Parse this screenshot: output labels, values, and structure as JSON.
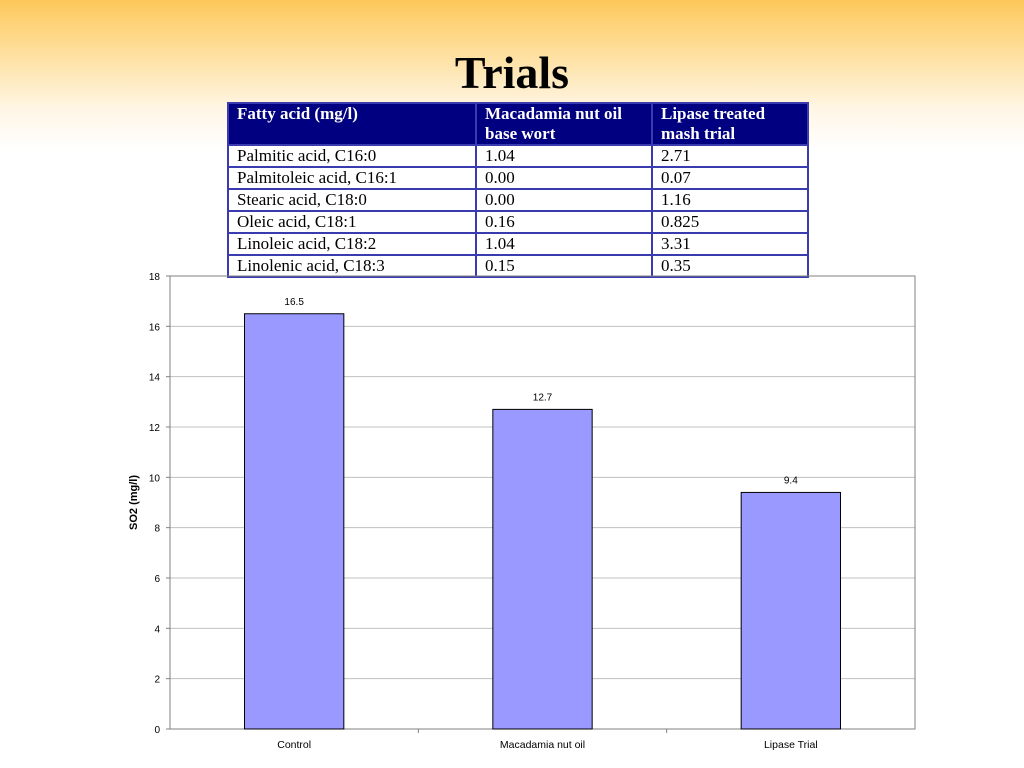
{
  "slide": {
    "title": "Trials"
  },
  "table": {
    "headers": [
      "Fatty acid (mg/l)",
      "Macadamia nut oil base wort",
      "Lipase treated mash trial"
    ],
    "rows": [
      [
        "Palmitic acid, C16:0",
        "1.04",
        "2.71"
      ],
      [
        "Palmitoleic acid, C16:1",
        "0.00",
        "0.07"
      ],
      [
        "Stearic acid, C18:0",
        "0.00",
        "1.16"
      ],
      [
        "Oleic acid, C18:1",
        "0.16",
        "0.825"
      ],
      [
        "Linoleic acid, C18:2",
        "1.04",
        "3.31"
      ],
      [
        "Linolenic acid, C18:3",
        "0.15",
        "0.35"
      ]
    ]
  },
  "chart_data": {
    "type": "bar",
    "title": "",
    "xlabel": "",
    "ylabel": "SO2 (mg/l)",
    "categories": [
      "Control",
      "Macadamia nut oil",
      "Lipase Trial"
    ],
    "values": [
      16.5,
      12.7,
      9.4
    ],
    "data_labels": [
      "16.5",
      "12.7",
      "9.4"
    ],
    "ylim": [
      0,
      18
    ],
    "yticks": [
      0,
      2,
      4,
      6,
      8,
      10,
      12,
      14,
      16,
      18
    ],
    "grid": true,
    "legend": "none",
    "bar_color": "#9999ff",
    "bar_edge_color": "#000000",
    "gridline_color": "#c0c0c0"
  }
}
